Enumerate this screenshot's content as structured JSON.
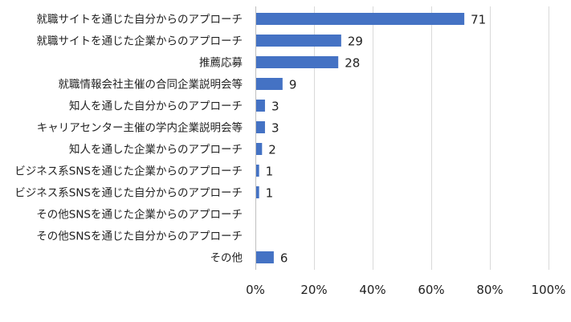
{
  "chart_data": {
    "type": "bar",
    "orientation": "horizontal",
    "categories": [
      "就職サイトを通じた自分からのアプローチ",
      "就職サイトを通じた企業からのアプローチ",
      "推薦応募",
      "就職情報会社主催の合同企業説明会等",
      "知人を通した自分からのアプローチ",
      "キャリアセンター主催の学内企業説明会等",
      "知人を通した企業からのアプローチ",
      "ビジネス系SNSを通じた企業からのアプローチ",
      "ビジネス系SNSを通じた自分からのアプローチ",
      "その他SNSを通じた企業からのアプローチ",
      "その他SNSを通じた自分からのアプローチ",
      "その他"
    ],
    "values": [
      71,
      29,
      28,
      9,
      3,
      3,
      2,
      1,
      1,
      0,
      0,
      6
    ],
    "data_labels": [
      "71",
      "29",
      "28",
      "9",
      "3",
      "3",
      "2",
      "1",
      "1",
      "",
      "",
      "6"
    ],
    "x_ticks": [
      "0%",
      "20%",
      "40%",
      "60%",
      "80%",
      "100%"
    ],
    "xlim": [
      0,
      100
    ],
    "grid": true,
    "bar_color": "#4472C4",
    "title": "",
    "xlabel": "",
    "ylabel": ""
  }
}
